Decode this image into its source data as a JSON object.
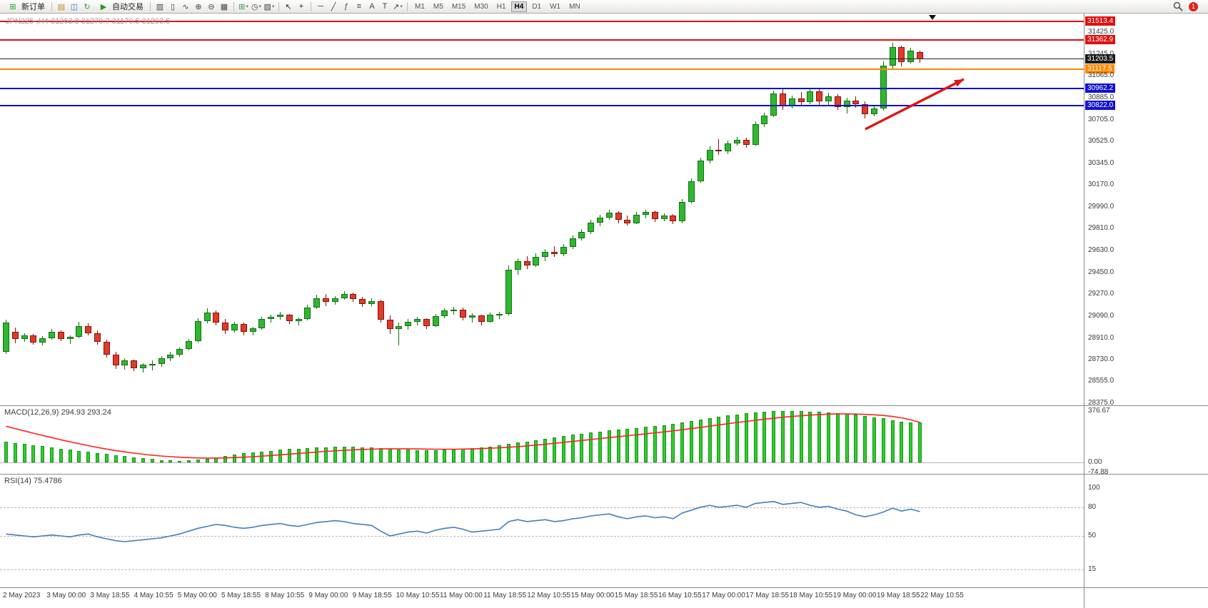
{
  "toolbar": {
    "new_order_label": "新订单",
    "auto_trading_label": "自动交易",
    "left_icons": [
      {
        "name": "charts-window-icon",
        "glyph": "▤",
        "color": "#c08a2a"
      },
      {
        "name": "profile-icon",
        "glyph": "◫",
        "color": "#3b6fb0"
      },
      {
        "name": "refresh-icon",
        "glyph": "↻",
        "color": "#2e9e46"
      }
    ],
    "chart_icons": [
      {
        "name": "bar-chart-icon",
        "glyph": "▥",
        "color": "#444444"
      },
      {
        "name": "candlestick-icon",
        "glyph": "▯",
        "color": "#444444"
      },
      {
        "name": "line-chart-icon",
        "glyph": "∿",
        "color": "#444444"
      },
      {
        "name": "zoom-in-icon",
        "glyph": "⊕",
        "color": "#444444"
      },
      {
        "name": "zoom-out-icon",
        "glyph": "⊖",
        "color": "#444444"
      },
      {
        "name": "tile-windows-icon",
        "glyph": "▦",
        "color": "#444444"
      }
    ],
    "object_icons": [
      {
        "name": "add-chart-icon",
        "glyph": "⊞",
        "color": "#2e9e46",
        "dropdown": true
      },
      {
        "name": "period-icon",
        "glyph": "◷",
        "color": "#444444",
        "dropdown": true
      },
      {
        "name": "template-icon",
        "glyph": "▧",
        "color": "#444444",
        "dropdown": true
      }
    ],
    "cursor_icons": [
      {
        "name": "cursor-icon",
        "glyph": "↖",
        "color": "#222222"
      },
      {
        "name": "crosshair-icon",
        "glyph": "+",
        "color": "#222222"
      }
    ],
    "draw_icons": [
      {
        "name": "horizontal-line-icon",
        "glyph": "─",
        "color": "#444444"
      },
      {
        "name": "trendline-icon",
        "glyph": "╱",
        "color": "#444444"
      },
      {
        "name": "fibonacci-icon",
        "glyph": "ƒ",
        "color": "#444444"
      },
      {
        "name": "grid-icon",
        "glyph": "≡",
        "color": "#444444"
      },
      {
        "name": "text-icon",
        "glyph": "A",
        "color": "#444444"
      },
      {
        "name": "label-icon",
        "glyph": "T",
        "color": "#444444"
      },
      {
        "name": "arrows-icon",
        "glyph": "↗",
        "color": "#444444",
        "dropdown": true
      }
    ],
    "timeframes": [
      "M1",
      "M5",
      "M15",
      "M30",
      "H1",
      "H4",
      "D1",
      "W1",
      "MN"
    ],
    "active_timeframe": "H4",
    "notification_count": "1"
  },
  "chart_data": {
    "type": "candlestick",
    "symbol": "JPN225-",
    "timeframe": "H4",
    "title": "JPN225-,H4  31263.8 31270.7 31170.5 31203.5",
    "ohlc_current": {
      "open": 31263.8,
      "high": 31270.7,
      "low": 31170.5,
      "close": 31203.5
    },
    "price_axis_range": [
      28375.0,
      31513.4
    ],
    "colors": {
      "up": "#2eb82e",
      "up_border": "#156e15",
      "down": "#e23a2a",
      "down_border": "#801408",
      "macd_bar": "#2ecc2e",
      "macd_bar_border": "#139613",
      "macd_signal": "#ff2222",
      "rsi_line": "#3f7fbf",
      "level_dash": "#b8b8b8",
      "axis_text": "#3a3a3a",
      "background": "#ffffff"
    },
    "candles": [
      [
        28795,
        29060,
        28780,
        29040
      ],
      [
        28960,
        28995,
        28870,
        28900
      ],
      [
        28900,
        28950,
        28880,
        28935
      ],
      [
        28935,
        28945,
        28855,
        28875
      ],
      [
        28875,
        28925,
        28850,
        28910
      ],
      [
        28910,
        28985,
        28895,
        28960
      ],
      [
        28960,
        28975,
        28885,
        28905
      ],
      [
        28905,
        28935,
        28860,
        28920
      ],
      [
        28920,
        29045,
        28910,
        29010
      ],
      [
        29010,
        29030,
        28930,
        28950
      ],
      [
        28950,
        28975,
        28855,
        28880
      ],
      [
        28880,
        28895,
        28750,
        28775
      ],
      [
        28775,
        28795,
        28655,
        28685
      ],
      [
        28685,
        28745,
        28650,
        28725
      ],
      [
        28725,
        28735,
        28640,
        28660
      ],
      [
        28660,
        28705,
        28625,
        28690
      ],
      [
        28690,
        28725,
        28645,
        28700
      ],
      [
        28700,
        28765,
        28675,
        28745
      ],
      [
        28745,
        28795,
        28720,
        28775
      ],
      [
        28775,
        28835,
        28755,
        28820
      ],
      [
        28820,
        28905,
        28810,
        28885
      ],
      [
        28885,
        29075,
        28875,
        29050
      ],
      [
        29050,
        29155,
        29030,
        29120
      ],
      [
        29120,
        29135,
        29015,
        29040
      ],
      [
        29040,
        29065,
        28945,
        28975
      ],
      [
        28975,
        29045,
        28955,
        29025
      ],
      [
        29025,
        29040,
        28935,
        28960
      ],
      [
        28960,
        29005,
        28930,
        28990
      ],
      [
        28990,
        29085,
        28980,
        29065
      ],
      [
        29065,
        29105,
        29040,
        29085
      ],
      [
        29085,
        29125,
        29060,
        29100
      ],
      [
        29100,
        29110,
        29025,
        29050
      ],
      [
        29050,
        29080,
        29015,
        29065
      ],
      [
        29065,
        29185,
        29055,
        29160
      ],
      [
        29160,
        29265,
        29150,
        29240
      ],
      [
        29240,
        29275,
        29175,
        29210
      ],
      [
        29210,
        29255,
        29185,
        29235
      ],
      [
        29235,
        29295,
        29225,
        29270
      ],
      [
        29270,
        29285,
        29205,
        29230
      ],
      [
        29230,
        29250,
        29165,
        29190
      ],
      [
        29190,
        29235,
        29170,
        29215
      ],
      [
        29215,
        29225,
        29035,
        29060
      ],
      [
        29060,
        29095,
        28945,
        28985
      ],
      [
        28985,
        29035,
        28850,
        29010
      ],
      [
        29010,
        29065,
        28980,
        29045
      ],
      [
        29045,
        29085,
        29015,
        29065
      ],
      [
        29065,
        29075,
        28985,
        29010
      ],
      [
        29010,
        29110,
        29000,
        29090
      ],
      [
        29090,
        29155,
        29075,
        29135
      ],
      [
        29135,
        29165,
        29100,
        29145
      ],
      [
        29145,
        29160,
        29055,
        29080
      ],
      [
        29080,
        29115,
        29035,
        29095
      ],
      [
        29095,
        29105,
        29015,
        29045
      ],
      [
        29045,
        29120,
        29035,
        29100
      ],
      [
        29100,
        29125,
        29070,
        29110
      ],
      [
        29110,
        29505,
        29095,
        29470
      ],
      [
        29470,
        29565,
        29430,
        29540
      ],
      [
        29540,
        29585,
        29475,
        29510
      ],
      [
        29510,
        29605,
        29495,
        29580
      ],
      [
        29580,
        29645,
        29540,
        29620
      ],
      [
        29620,
        29665,
        29575,
        29600
      ],
      [
        29600,
        29685,
        29585,
        29660
      ],
      [
        29660,
        29755,
        29640,
        29730
      ],
      [
        29730,
        29805,
        29710,
        29780
      ],
      [
        29780,
        29885,
        29765,
        29860
      ],
      [
        29860,
        29925,
        29830,
        29900
      ],
      [
        29900,
        29965,
        29880,
        29940
      ],
      [
        29940,
        29955,
        29855,
        29880
      ],
      [
        29880,
        29915,
        29835,
        29855
      ],
      [
        29855,
        29945,
        29845,
        29925
      ],
      [
        29925,
        29965,
        29895,
        29945
      ],
      [
        29945,
        29960,
        29865,
        29890
      ],
      [
        29890,
        29935,
        29870,
        29915
      ],
      [
        29915,
        29930,
        29845,
        29870
      ],
      [
        29870,
        30055,
        29855,
        30030
      ],
      [
        30030,
        30225,
        30015,
        30200
      ],
      [
        30200,
        30395,
        30185,
        30370
      ],
      [
        30370,
        30485,
        30345,
        30460
      ],
      [
        30460,
        30545,
        30415,
        30445
      ],
      [
        30445,
        30535,
        30425,
        30510
      ],
      [
        30510,
        30565,
        30490,
        30540
      ],
      [
        30540,
        30555,
        30475,
        30500
      ],
      [
        30500,
        30695,
        30490,
        30670
      ],
      [
        30670,
        30765,
        30645,
        30740
      ],
      [
        30740,
        30945,
        30725,
        30920
      ],
      [
        30920,
        30955,
        30785,
        30820
      ],
      [
        30820,
        30905,
        30795,
        30880
      ],
      [
        30880,
        30935,
        30825,
        30850
      ],
      [
        30850,
        30965,
        30835,
        30940
      ],
      [
        30940,
        30955,
        30825,
        30855
      ],
      [
        30855,
        30925,
        30815,
        30900
      ],
      [
        30900,
        30915,
        30785,
        30810
      ],
      [
        30810,
        30885,
        30755,
        30860
      ],
      [
        30860,
        30895,
        30805,
        30830
      ],
      [
        30830,
        30855,
        30715,
        30750
      ],
      [
        30750,
        30825,
        30735,
        30800
      ],
      [
        30800,
        31185,
        30780,
        31150
      ],
      [
        31150,
        31335,
        31125,
        31300
      ],
      [
        31300,
        31315,
        31145,
        31180
      ],
      [
        31180,
        31295,
        31165,
        31270
      ],
      [
        31263.8,
        31270.7,
        31170.5,
        31203.5
      ]
    ],
    "levels": [
      {
        "name": "resistance-line-upper",
        "price": 31513.4,
        "color": "#dd1111",
        "width": 2
      },
      {
        "name": "resistance-line-lower",
        "price": 31362.9,
        "color": "#dd1111",
        "width": 2
      },
      {
        "name": "current-price-line",
        "price": 31203.5,
        "color": "#222222",
        "width": 1
      },
      {
        "name": "pivot-line-orange",
        "price": 31117.5,
        "color": "#ff8800",
        "width": 2
      },
      {
        "name": "support-line-upper",
        "price": 30962.2,
        "color": "#1111cc",
        "width": 2
      },
      {
        "name": "support-line-lower",
        "price": 30822.0,
        "color": "#1111cc",
        "width": 2
      }
    ],
    "price_ticks": [
      {
        "label": "31513.4",
        "value": 31513.4,
        "box": "#dd1111"
      },
      {
        "label": "31425.0",
        "value": 31425.0,
        "box": null
      },
      {
        "label": "31362.9",
        "value": 31362.9,
        "box": "#dd1111"
      },
      {
        "label": "31245.0",
        "value": 31245.0,
        "box": null
      },
      {
        "label": "31203.5",
        "value": 31203.5,
        "box": "#1a1a1a"
      },
      {
        "label": "31117.5",
        "value": 31117.5,
        "box": "#ff8800"
      },
      {
        "label": "31065.0",
        "value": 31065.0,
        "box": null
      },
      {
        "label": "30962.2",
        "value": 30962.2,
        "box": "#1111cc"
      },
      {
        "label": "30885.0",
        "value": 30885.0,
        "box": null
      },
      {
        "label": "30822.0",
        "value": 30822.0,
        "box": "#1111cc"
      },
      {
        "label": "30705.0",
        "value": 30705.0,
        "box": null
      },
      {
        "label": "30525.0",
        "value": 30525.0,
        "box": null
      },
      {
        "label": "30345.0",
        "value": 30345.0,
        "box": null
      },
      {
        "label": "30170.0",
        "value": 30170.0,
        "box": null
      },
      {
        "label": "29990.0",
        "value": 29990.0,
        "box": null
      },
      {
        "label": "29810.0",
        "value": 29810.0,
        "box": null
      },
      {
        "label": "29630.0",
        "value": 29630.0,
        "box": null
      },
      {
        "label": "29450.0",
        "value": 29450.0,
        "box": null
      },
      {
        "label": "29270.0",
        "value": 29270.0,
        "box": null
      },
      {
        "label": "29090.0",
        "value": 29090.0,
        "box": null
      },
      {
        "label": "28910.0",
        "value": 28910.0,
        "box": null
      },
      {
        "label": "28730.0",
        "value": 28730.0,
        "box": null
      },
      {
        "label": "28555.0",
        "value": 28555.0,
        "box": null
      },
      {
        "label": "28375.0",
        "value": 28375.0,
        "box": null
      }
    ],
    "macd": {
      "label": "MACD(12,26,9) 294.93 293.24",
      "params": "12,26,9",
      "current_macd": 294.93,
      "current_signal": 293.24,
      "ticks": [
        {
          "label": "376.67",
          "value": 376.67
        },
        {
          "label": "0.00",
          "value": 0
        },
        {
          "label": "-74.88",
          "value": -74.88
        }
      ],
      "values": [
        150,
        142,
        134,
        126,
        118,
        110,
        102,
        94,
        86,
        78,
        70,
        62,
        54,
        46,
        38,
        30,
        24,
        18,
        14,
        12,
        14,
        20,
        28,
        38,
        48,
        58,
        66,
        74,
        80,
        86,
        92,
        97,
        101,
        105,
        108,
        111,
        113,
        114,
        113,
        111,
        108,
        104,
        99,
        95,
        92,
        90,
        89,
        90,
        92,
        95,
        99,
        104,
        110,
        117,
        125,
        134,
        144,
        154,
        164,
        174,
        184,
        193,
        202,
        211,
        219,
        227,
        234,
        241,
        247,
        253,
        259,
        266,
        274,
        283,
        293,
        304,
        315,
        326,
        336,
        345,
        353,
        360,
        366,
        371,
        375,
        377,
        377,
        376,
        374,
        371,
        367,
        362,
        356,
        349,
        341,
        332,
        322,
        311,
        300,
        295,
        294.93
      ],
      "signal": [
        265,
        248,
        231,
        214,
        198,
        182,
        166,
        151,
        137,
        123,
        110,
        98,
        87,
        77,
        68,
        60,
        53,
        47,
        42,
        38,
        35,
        33,
        32,
        32,
        33,
        35,
        38,
        42,
        46,
        51,
        56,
        61,
        66,
        71,
        76,
        81,
        85,
        89,
        92,
        95,
        97,
        99,
        100,
        100,
        100,
        99,
        98,
        97,
        97,
        97,
        98,
        99,
        101,
        104,
        107,
        111,
        116,
        121,
        127,
        133,
        140,
        147,
        154,
        161,
        168,
        175,
        182,
        189,
        196,
        203,
        210,
        217,
        224,
        232,
        240,
        248,
        257,
        266,
        275,
        284,
        293,
        301,
        309,
        317,
        324,
        331,
        337,
        342,
        347,
        351,
        354,
        355,
        355,
        354,
        352,
        349,
        344,
        337,
        327,
        312,
        293.24
      ]
    },
    "rsi": {
      "label": "RSI(14) 75.4786",
      "period": 14,
      "current": 75.4786,
      "range": [
        0,
        100
      ],
      "level_lines": [
        80,
        50,
        15
      ],
      "ticks": [
        {
          "label": "100",
          "value": 100
        },
        {
          "label": "80",
          "value": 80
        },
        {
          "label": "50",
          "value": 50
        },
        {
          "label": "15",
          "value": 15
        }
      ],
      "values": [
        52,
        51,
        50,
        49,
        50,
        51,
        50,
        49,
        51,
        52,
        49,
        47,
        45,
        44,
        45,
        46,
        47,
        48,
        50,
        52,
        55,
        58,
        60,
        62,
        61,
        59,
        58,
        59,
        61,
        62,
        63,
        61,
        60,
        62,
        64,
        65,
        66,
        65,
        63,
        62,
        61,
        55,
        50,
        52,
        54,
        55,
        53,
        56,
        58,
        59,
        57,
        54,
        55,
        56,
        57,
        65,
        67,
        65,
        66,
        67,
        65,
        66,
        68,
        69,
        71,
        72,
        73,
        70,
        68,
        70,
        71,
        69,
        70,
        68,
        74,
        77,
        80,
        82,
        80,
        81,
        82,
        80,
        84,
        85,
        86,
        83,
        84,
        85,
        82,
        80,
        81,
        78,
        76,
        72,
        70,
        72,
        75,
        79,
        76,
        78,
        75.4786
      ]
    },
    "time_labels": [
      "2 May 2023",
      "3 May 00:00",
      "3 May 18:55",
      "4 May 10:55",
      "5 May 00:00",
      "5 May 18:55",
      "8 May 10:55",
      "9 May 00:00",
      "9 May 18:55",
      "10 May 10:55",
      "11 May 00:00",
      "11 May 18:55",
      "12 May 10:55",
      "15 May 00:00",
      "15 May 18:55",
      "16 May 10:55",
      "17 May 00:00",
      "17 May 18:55",
      "18 May 10:55",
      "19 May 00:00",
      "19 May 18:55",
      "22 May 10:55"
    ],
    "annotation_arrow": {
      "from": [
        1212,
        181
      ],
      "to": [
        1350,
        111
      ],
      "color": "#e01616",
      "width": 3.5
    }
  }
}
